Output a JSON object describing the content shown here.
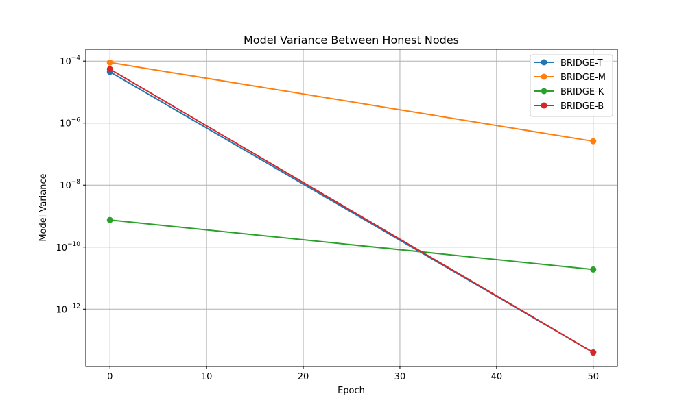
{
  "chart_data": {
    "type": "line",
    "title": "Model Variance Between Honest Nodes",
    "xlabel": "Epoch",
    "ylabel": "Model Variance",
    "xlim": [
      -2.5,
      52.5
    ],
    "ylim_log10": [
      -13.85,
      -3.62
    ],
    "yscale": "log",
    "x_ticks": [
      0,
      10,
      20,
      30,
      40,
      50
    ],
    "x_tick_labels": [
      "0",
      "10",
      "20",
      "30",
      "40",
      "50"
    ],
    "y_ticks_log10": [
      -4,
      -6,
      -8,
      -10,
      -12
    ],
    "y_tick_labels": [
      {
        "base": "10",
        "exp": "−4"
      },
      {
        "base": "10",
        "exp": "−6"
      },
      {
        "base": "10",
        "exp": "−8"
      },
      {
        "base": "10",
        "exp": "−10"
      },
      {
        "base": "10",
        "exp": "−12"
      }
    ],
    "grid": true,
    "legend_position": "top-right",
    "x": [
      0,
      50
    ],
    "series": [
      {
        "name": "BRIDGE-T",
        "color": "#1f77b4",
        "values": [
          4.5e-05,
          4e-14
        ]
      },
      {
        "name": "BRIDGE-M",
        "color": "#ff7f0e",
        "values": [
          9e-05,
          2.6e-07
        ]
      },
      {
        "name": "BRIDGE-K",
        "color": "#2ca02c",
        "values": [
          7.5e-10,
          1.9e-11
        ]
      },
      {
        "name": "BRIDGE-B",
        "color": "#d62728",
        "values": [
          5.5e-05,
          4e-14
        ]
      }
    ]
  }
}
